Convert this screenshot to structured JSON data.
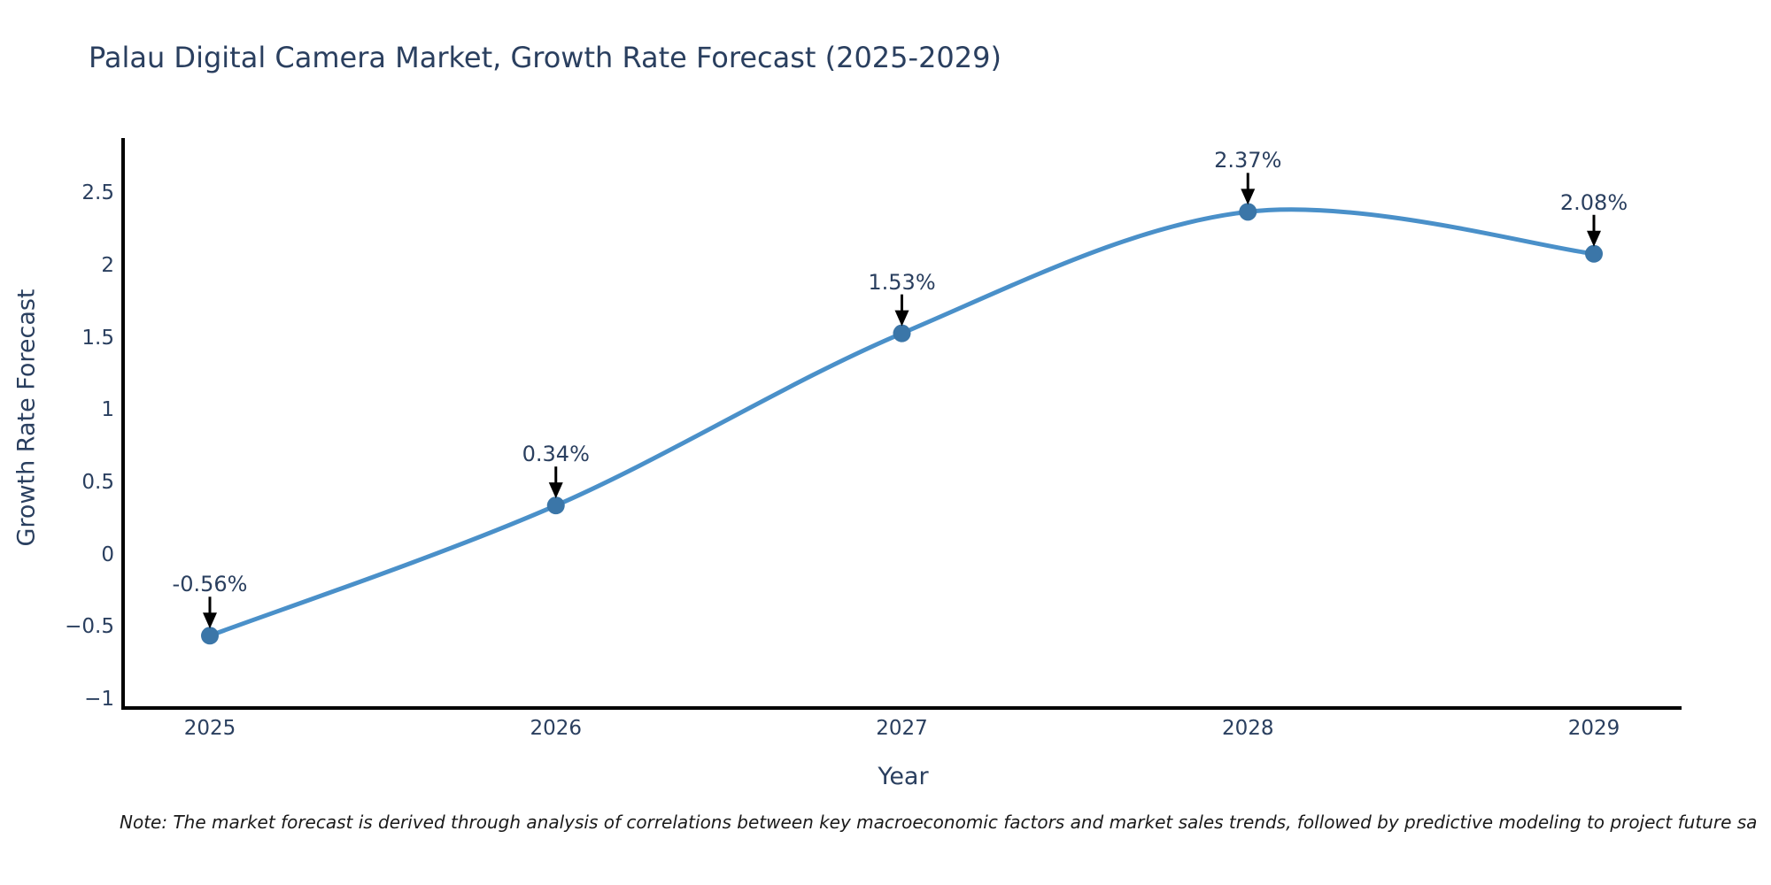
{
  "page": {
    "note": "Note: The market forecast is derived through analysis of correlations between key macroeconomic factors and market sales trends, followed by predictive modeling to project future sa"
  },
  "chart_data": {
    "type": "line",
    "title": "Palau Digital Camera Market, Growth Rate Forecast (2025-2029)",
    "xlabel": "Year",
    "ylabel": "Growth Rate Forecast",
    "x": [
      2025,
      2026,
      2027,
      2028,
      2029
    ],
    "x_tick_labels": [
      "2025",
      "2026",
      "2027",
      "2028",
      "2029"
    ],
    "series": [
      {
        "name": "Growth Rate Forecast",
        "values": [
          -0.56,
          0.34,
          1.53,
          2.37,
          2.08
        ]
      }
    ],
    "point_labels": [
      "-0.56%",
      "0.34%",
      "1.53%",
      "2.37%",
      "2.08%"
    ],
    "y_ticks": [
      2.5,
      2,
      1.5,
      1,
      0.5,
      0,
      -0.5,
      -1
    ],
    "y_tick_labels": [
      "2.5",
      "2",
      "1.5",
      "1",
      "0.5",
      "0",
      "−0.5",
      "−1"
    ],
    "ylim": [
      -1.06,
      2.88
    ],
    "grid": false,
    "legend": "none",
    "line_shape": "spline",
    "marker": "circle",
    "annotation_style": "arrow-down",
    "colors": {
      "line": "#4a90c9",
      "marker": "#3b76a8",
      "text": "#2a3f5f",
      "axis": "#000000",
      "arrow": "#000000",
      "note_text": "#1a1a1a",
      "background": "#ffffff"
    }
  }
}
